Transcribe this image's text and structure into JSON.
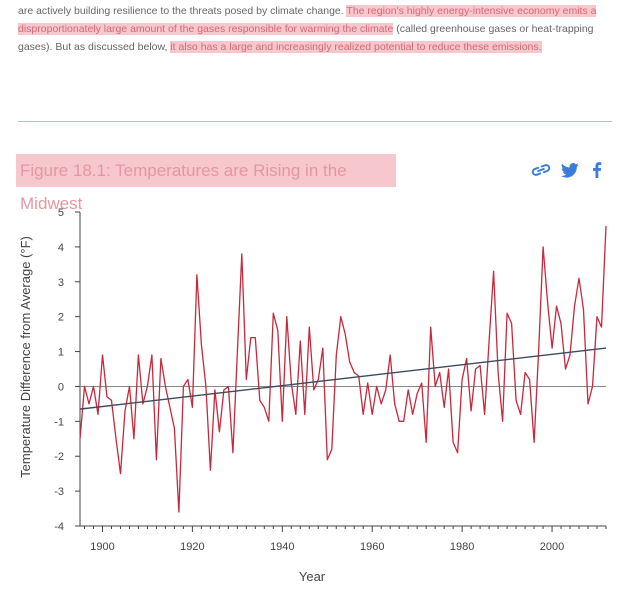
{
  "article": {
    "text_plain_1": "are actively building resilience to the threats posed by climate change. ",
    "text_hl_1": "The region's highly energy-intensive economy emits a disproportionately large amount of the gases responsible for warming the climate",
    "text_plain_2": " (called greenhouse gases or heat-trapping gases). But as discussed below, ",
    "text_hl_2": "it also has a large and increasingly realized potential to reduce these emissions."
  },
  "figure": {
    "title": "Figure 18.1: Temperatures are Rising in the Midwest",
    "share_icons": [
      "link-icon",
      "twitter-icon",
      "facebook-icon"
    ]
  },
  "colors": {
    "series": "#c8283c",
    "trend": "#3d4a5c",
    "highlight_bg": "#f6c7cc",
    "highlight_text": "#d66a78",
    "share": "#3b7dd8",
    "divider": "#a9c7e3"
  },
  "chart_data": {
    "type": "line",
    "title": "",
    "xlabel": "Year",
    "ylabel": "Temperature Difference from Average (°F)",
    "xlim": [
      1895,
      2012
    ],
    "ylim": [
      -4,
      5
    ],
    "xticks": [
      1900,
      1920,
      1940,
      1960,
      1980,
      2000
    ],
    "yticks": [
      -4,
      -3,
      -2,
      -1,
      0,
      1,
      2,
      3,
      4,
      5
    ],
    "grid": false,
    "series": [
      {
        "x": [
          1895,
          1896,
          1897,
          1898,
          1899,
          1900,
          1901,
          1902,
          1903,
          1904,
          1905,
          1906,
          1907,
          1908,
          1909,
          1910,
          1911,
          1912,
          1913,
          1914,
          1915,
          1916,
          1917,
          1918,
          1919,
          1920,
          1921,
          1922,
          1923,
          1924,
          1925,
          1926,
          1927,
          1928,
          1929,
          1930,
          1931,
          1932,
          1933,
          1934,
          1935,
          1936,
          1937,
          1938,
          1939,
          1940,
          1941,
          1942,
          1943,
          1944,
          1945,
          1946,
          1947,
          1948,
          1949,
          1950,
          1951,
          1952,
          1953,
          1954,
          1955,
          1956,
          1957,
          1958,
          1959,
          1960,
          1961,
          1962,
          1963,
          1964,
          1965,
          1966,
          1967,
          1968,
          1969,
          1970,
          1971,
          1972,
          1973,
          1974,
          1975,
          1976,
          1977,
          1978,
          1979,
          1980,
          1981,
          1982,
          1983,
          1984,
          1985,
          1986,
          1987,
          1988,
          1989,
          1990,
          1991,
          1992,
          1993,
          1994,
          1995,
          1996,
          1997,
          1998,
          1999,
          2000,
          2001,
          2002,
          2003,
          2004,
          2005,
          2006,
          2007,
          2008,
          2009,
          2010,
          2011,
          2012
        ],
        "values": [
          -1.5,
          0.0,
          -0.5,
          0.0,
          -0.8,
          0.9,
          -0.3,
          -0.4,
          -1.5,
          -2.5,
          -0.7,
          0.0,
          -1.5,
          0.9,
          -0.5,
          0.0,
          0.9,
          -2.1,
          0.8,
          0.0,
          -0.6,
          -1.2,
          -3.6,
          0.0,
          0.2,
          -0.6,
          3.2,
          1.2,
          0.0,
          -2.4,
          -0.1,
          -1.3,
          -0.1,
          0.0,
          -1.9,
          1.0,
          3.8,
          0.2,
          1.4,
          1.4,
          -0.4,
          -0.6,
          -1.0,
          2.1,
          1.6,
          -1.0,
          2.0,
          0.1,
          -0.8,
          1.3,
          -0.8,
          1.7,
          -0.1,
          0.2,
          1.1,
          -2.1,
          -1.8,
          0.9,
          2.0,
          1.5,
          0.7,
          0.4,
          0.3,
          -0.8,
          0.1,
          -0.8,
          0.0,
          -0.5,
          -0.1,
          0.9,
          -0.5,
          -1.0,
          -1.0,
          -0.1,
          -0.8,
          -0.2,
          0.1,
          -1.6,
          1.7,
          0.0,
          0.4,
          -0.6,
          0.5,
          -1.6,
          -1.9,
          0.2,
          0.8,
          -0.7,
          0.5,
          0.6,
          -0.8,
          1.3,
          3.3,
          0.4,
          -1.0,
          2.1,
          1.8,
          -0.4,
          -0.8,
          0.4,
          0.2,
          -1.6,
          1.0,
          4.0,
          2.4,
          1.1,
          2.3,
          1.8,
          0.5,
          0.9,
          2.3,
          3.1,
          2.2,
          -0.5,
          0.0,
          2.0,
          1.7,
          4.6
        ]
      }
    ],
    "trend": {
      "x": [
        1895,
        2012
      ],
      "y": [
        -0.65,
        1.1
      ]
    }
  }
}
